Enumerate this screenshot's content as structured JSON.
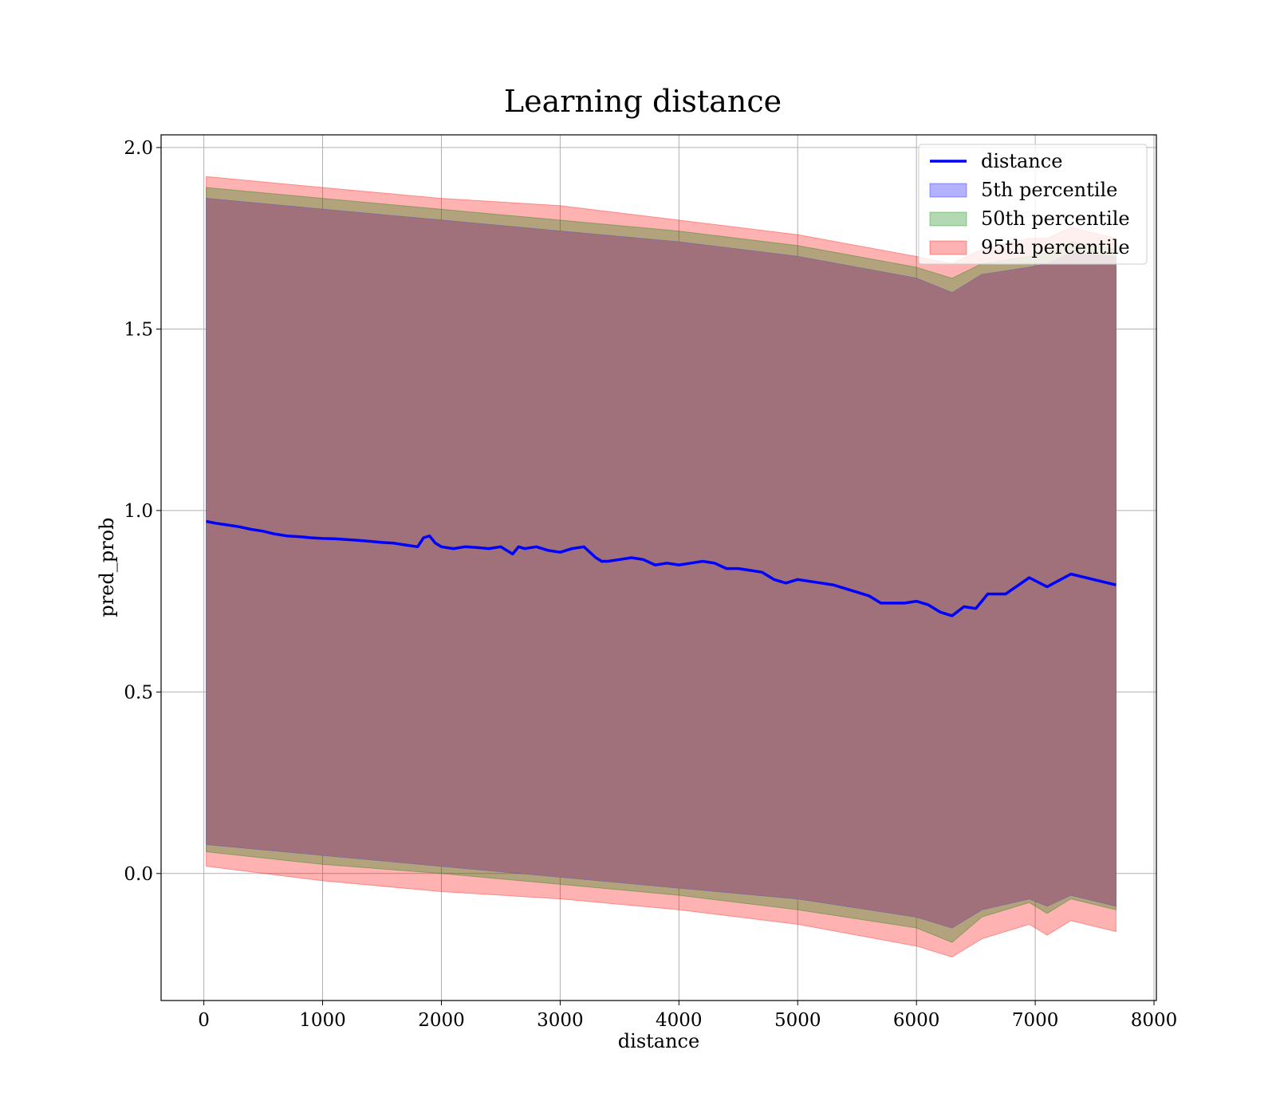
{
  "chart_data": {
    "type": "line",
    "title": "Learning distance",
    "xlabel": "distance",
    "ylabel": "pred_prob",
    "xlim": [
      -360,
      8020
    ],
    "ylim": [
      -0.35,
      2.035
    ],
    "xticks": [
      "0",
      "1000",
      "2000",
      "3000",
      "4000",
      "5000",
      "6000",
      "7000",
      "8000"
    ],
    "yticks": [
      "0.0",
      "0.5",
      "1.0",
      "1.5",
      "2.0"
    ],
    "grid": true,
    "legend_position": "top-right",
    "colors": {
      "distance": "#0000ff",
      "p5": "#0000ff",
      "p50": "#008000",
      "p95": "#ff0000",
      "overlap": "#a0717b"
    },
    "legend": [
      {
        "label": "distance",
        "kind": "line"
      },
      {
        "label": "5th percentile",
        "kind": "band"
      },
      {
        "label": "50th percentile",
        "kind": "band"
      },
      {
        "label": "95th percentile",
        "kind": "band"
      }
    ],
    "series": [
      {
        "name": "distance",
        "x": [
          20,
          100,
          200,
          300,
          400,
          500,
          600,
          700,
          800,
          900,
          1000,
          1100,
          1200,
          1300,
          1400,
          1500,
          1600,
          1700,
          1800,
          1850,
          1900,
          1950,
          2000,
          2100,
          2200,
          2300,
          2400,
          2500,
          2600,
          2650,
          2700,
          2800,
          2900,
          3000,
          3100,
          3200,
          3300,
          3350,
          3400,
          3500,
          3600,
          3700,
          3800,
          3900,
          4000,
          4100,
          4200,
          4300,
          4400,
          4500,
          4600,
          4700,
          4800,
          4900,
          5000,
          5100,
          5200,
          5300,
          5400,
          5500,
          5600,
          5700,
          5800,
          5900,
          6000,
          6100,
          6200,
          6300,
          6400,
          6500,
          6600,
          6750,
          6950,
          7100,
          7300,
          7680
        ],
        "values": [
          0.97,
          0.965,
          0.96,
          0.955,
          0.948,
          0.943,
          0.935,
          0.93,
          0.928,
          0.925,
          0.923,
          0.922,
          0.92,
          0.918,
          0.915,
          0.912,
          0.91,
          0.905,
          0.9,
          0.925,
          0.93,
          0.91,
          0.9,
          0.895,
          0.9,
          0.898,
          0.895,
          0.9,
          0.88,
          0.9,
          0.895,
          0.9,
          0.89,
          0.885,
          0.895,
          0.9,
          0.87,
          0.86,
          0.86,
          0.865,
          0.87,
          0.865,
          0.85,
          0.855,
          0.85,
          0.855,
          0.86,
          0.855,
          0.84,
          0.84,
          0.835,
          0.83,
          0.81,
          0.8,
          0.81,
          0.805,
          0.8,
          0.795,
          0.785,
          0.775,
          0.765,
          0.745,
          0.745,
          0.745,
          0.75,
          0.74,
          0.72,
          0.71,
          0.735,
          0.73,
          0.77,
          0.77,
          0.815,
          0.79,
          0.825,
          0.795
        ]
      }
    ],
    "bands": [
      {
        "name": "5th percentile",
        "x": [
          20,
          1000,
          2000,
          3000,
          4000,
          5000,
          6000,
          6300,
          6550,
          6950,
          7100,
          7300,
          7680
        ],
        "lower": [
          0.08,
          0.05,
          0.02,
          -0.01,
          -0.04,
          -0.07,
          -0.12,
          -0.15,
          -0.1,
          -0.07,
          -0.09,
          -0.06,
          -0.09
        ],
        "upper": [
          1.86,
          1.83,
          1.8,
          1.77,
          1.74,
          1.7,
          1.64,
          1.6,
          1.65,
          1.67,
          1.68,
          1.71,
          1.7
        ]
      },
      {
        "name": "50th percentile",
        "x": [
          20,
          1000,
          2000,
          3000,
          4000,
          5000,
          6000,
          6300,
          6550,
          6950,
          7100,
          7300,
          7680
        ],
        "lower": [
          0.06,
          0.025,
          0.0,
          -0.03,
          -0.06,
          -0.1,
          -0.15,
          -0.19,
          -0.12,
          -0.08,
          -0.11,
          -0.07,
          -0.1
        ],
        "upper": [
          1.89,
          1.86,
          1.83,
          1.8,
          1.77,
          1.73,
          1.67,
          1.64,
          1.68,
          1.7,
          1.71,
          1.74,
          1.72
        ]
      },
      {
        "name": "95th percentile",
        "x": [
          20,
          1000,
          2000,
          3000,
          4000,
          5000,
          6000,
          6300,
          6550,
          6950,
          7100,
          7300,
          7680
        ],
        "lower": [
          0.02,
          -0.02,
          -0.05,
          -0.07,
          -0.1,
          -0.14,
          -0.2,
          -0.23,
          -0.18,
          -0.14,
          -0.17,
          -0.13,
          -0.16
        ],
        "upper": [
          1.92,
          1.89,
          1.86,
          1.84,
          1.8,
          1.76,
          1.7,
          1.68,
          1.72,
          1.75,
          1.75,
          1.78,
          1.75
        ]
      }
    ]
  }
}
